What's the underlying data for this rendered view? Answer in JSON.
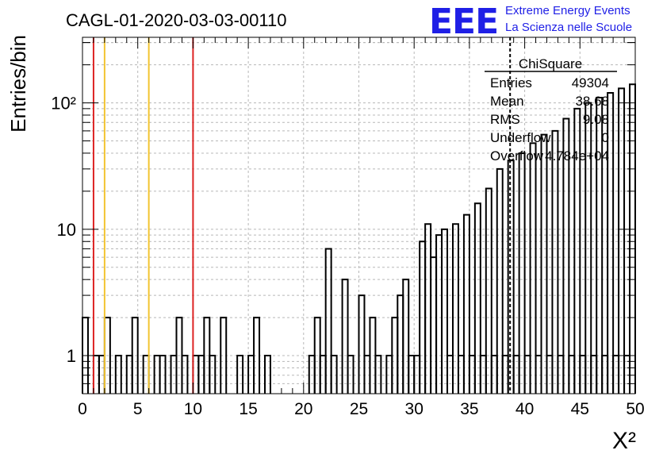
{
  "chart_data": {
    "type": "bar",
    "style": "histogram-step",
    "title": "CAGL-01-2020-03-03-00110",
    "xlabel": "X²",
    "ylabel": "Entries/bin",
    "xlim": [
      0,
      50
    ],
    "ylim": [
      0.5,
      330
    ],
    "yscale": "log",
    "grid": true,
    "bin_width": 0.5,
    "x_tick_labels": [
      "0",
      "5",
      "10",
      "15",
      "20",
      "25",
      "30",
      "35",
      "40",
      "45",
      "50"
    ],
    "y_tick_labels": [
      "1",
      "10",
      "10²"
    ],
    "values": [
      2,
      0,
      1,
      1,
      2,
      0,
      1,
      0,
      1,
      2,
      0,
      1,
      0,
      1,
      1,
      0,
      1,
      2,
      1,
      0,
      1,
      1,
      2,
      1,
      0,
      2,
      0,
      0,
      1,
      0,
      1,
      2,
      0,
      1,
      0,
      0,
      0,
      0,
      0,
      0,
      0,
      1,
      2,
      1,
      7,
      1,
      0,
      4,
      1,
      0,
      3,
      1,
      2,
      1,
      0,
      1,
      2,
      3,
      4,
      1,
      1,
      8,
      11,
      6,
      9,
      10,
      1,
      11,
      1,
      13,
      1,
      16,
      1,
      21,
      1,
      30,
      1,
      35,
      1,
      40,
      1,
      48,
      1,
      56,
      1,
      60,
      1,
      75,
      1,
      90,
      1,
      100,
      1,
      110,
      1,
      120,
      1,
      130,
      1,
      140
    ],
    "vertical_lines": [
      {
        "x": 1,
        "color": "#dd2222"
      },
      {
        "x": 2,
        "color": "#f2c431"
      },
      {
        "x": 6,
        "color": "#f2c431"
      },
      {
        "x": 10,
        "color": "#dd2222"
      },
      {
        "x": 38.68,
        "color": "#000000",
        "style": "dashed"
      }
    ],
    "stats_box": {
      "title": "ChiSquare",
      "rows": [
        {
          "label": "Entries",
          "value": "49304"
        },
        {
          "label": "Mean",
          "value": "38.68"
        },
        {
          "label": "RMS",
          "value": "9.08"
        },
        {
          "label": "Underflow",
          "value": "0"
        },
        {
          "label": "Overflow",
          "value": "4.784e+04"
        }
      ]
    }
  },
  "logo": {
    "mark": "EEE",
    "line1": "Extreme Energy Events",
    "line2": "La Scienza nelle Scuole",
    "color": "#1f1fe6"
  },
  "colors": {
    "red_line": "#dd2222",
    "yellow_line": "#f2c431",
    "grid": "#b8b8b8"
  }
}
